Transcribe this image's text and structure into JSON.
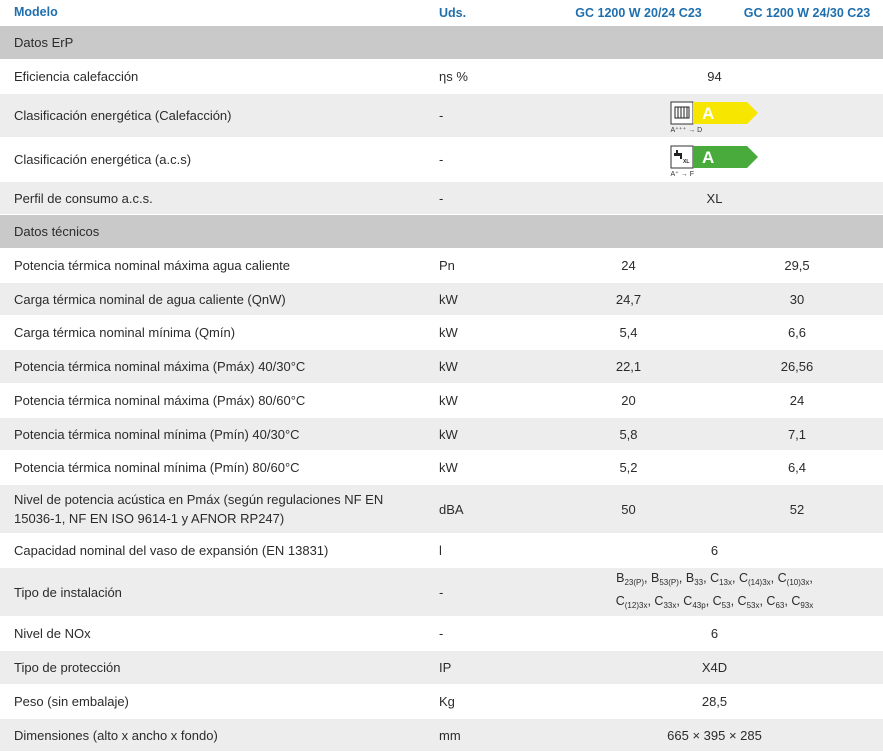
{
  "header": {
    "model": "Modelo",
    "units": "Uds.",
    "model1": "GC 1200 W 20/24 C23",
    "model2": "GC 1200 W 24/30 C23"
  },
  "sections": {
    "erp": "Datos ErP",
    "tech": "Datos técnicos"
  },
  "erp_rows": {
    "efficiency": {
      "label": "Eficiencia calefacción",
      "unit": "ηs %",
      "value": "94"
    },
    "class_heating": {
      "label": "Clasificación energética (Calefacción)",
      "unit": "-",
      "letter": "A",
      "range": "A⁺⁺⁺ → D",
      "color": "#f6e600"
    },
    "class_dhw": {
      "label": "Clasificación energética (a.c.s)",
      "unit": "-",
      "letter": "A",
      "range": "A⁺ → F",
      "badge": "XL",
      "color": "#4aab3d"
    },
    "profile": {
      "label": "Perfil de consumo a.c.s.",
      "unit": "-",
      "value": "XL"
    }
  },
  "tech_rows": [
    {
      "label": "Potencia térmica nominal máxima agua caliente",
      "unit": "Pn",
      "v1": "24",
      "v2": "29,5"
    },
    {
      "label": "Carga térmica nominal de agua caliente (QnW)",
      "unit": "kW",
      "v1": "24,7",
      "v2": "30"
    },
    {
      "label": "Carga térmica nominal mínima (Qmín)",
      "unit": "kW",
      "v1": "5,4",
      "v2": "6,6"
    },
    {
      "label": "Potencia térmica nominal máxima (Pmáx) 40/30°C",
      "unit": "kW",
      "v1": "22,1",
      "v2": "26,56"
    },
    {
      "label": "Potencia térmica nominal máxima (Pmáx) 80/60°C",
      "unit": "kW",
      "v1": "20",
      "v2": "24"
    },
    {
      "label": "Potencia térmica nominal mínima (Pmín) 40/30°C",
      "unit": "kW",
      "v1": "5,8",
      "v2": "7,1"
    },
    {
      "label": "Potencia térmica nominal mínima (Pmín) 80/60°C",
      "unit": "kW",
      "v1": "5,2",
      "v2": "6,4"
    },
    {
      "label": "Nivel de potencia acústica en Pmáx (según regulaciones NF EN 15036-1, NF EN ISO 9614-1 y AFNOR RP247)",
      "unit": "dBA",
      "v1": "50",
      "v2": "52"
    }
  ],
  "merged_rows": {
    "expansion": {
      "label": "Capacidad nominal del vaso de expansión (EN 13831)",
      "unit": "l",
      "value": "6"
    },
    "install": {
      "label": "Tipo de instalación",
      "unit": "-",
      "line1": [
        [
          "B",
          "23(P)"
        ],
        [
          "B",
          "53(P)"
        ],
        [
          "B",
          "33"
        ],
        [
          "C",
          "13x"
        ],
        [
          "C",
          "(14)3x"
        ],
        [
          "C",
          "(10)3x"
        ]
      ],
      "line2": [
        [
          "C",
          "(12)3x"
        ],
        [
          "C",
          "33x"
        ],
        [
          "C",
          "43p"
        ],
        [
          "C",
          "53"
        ],
        [
          "C",
          "53x"
        ],
        [
          "C",
          "63"
        ],
        [
          "C",
          "93x"
        ]
      ]
    },
    "nox": {
      "label": "Nivel de NOx",
      "unit": "-",
      "value": "6"
    },
    "protection": {
      "label": "Tipo de protección",
      "unit": "IP",
      "value": "X4D"
    },
    "weight": {
      "label": "Peso (sin embalaje)",
      "unit": "Kg",
      "value": "28,5"
    },
    "dims": {
      "label": "Dimensiones (alto x ancho x fondo)",
      "unit": "mm",
      "value": "665 × 395 × 285"
    }
  }
}
